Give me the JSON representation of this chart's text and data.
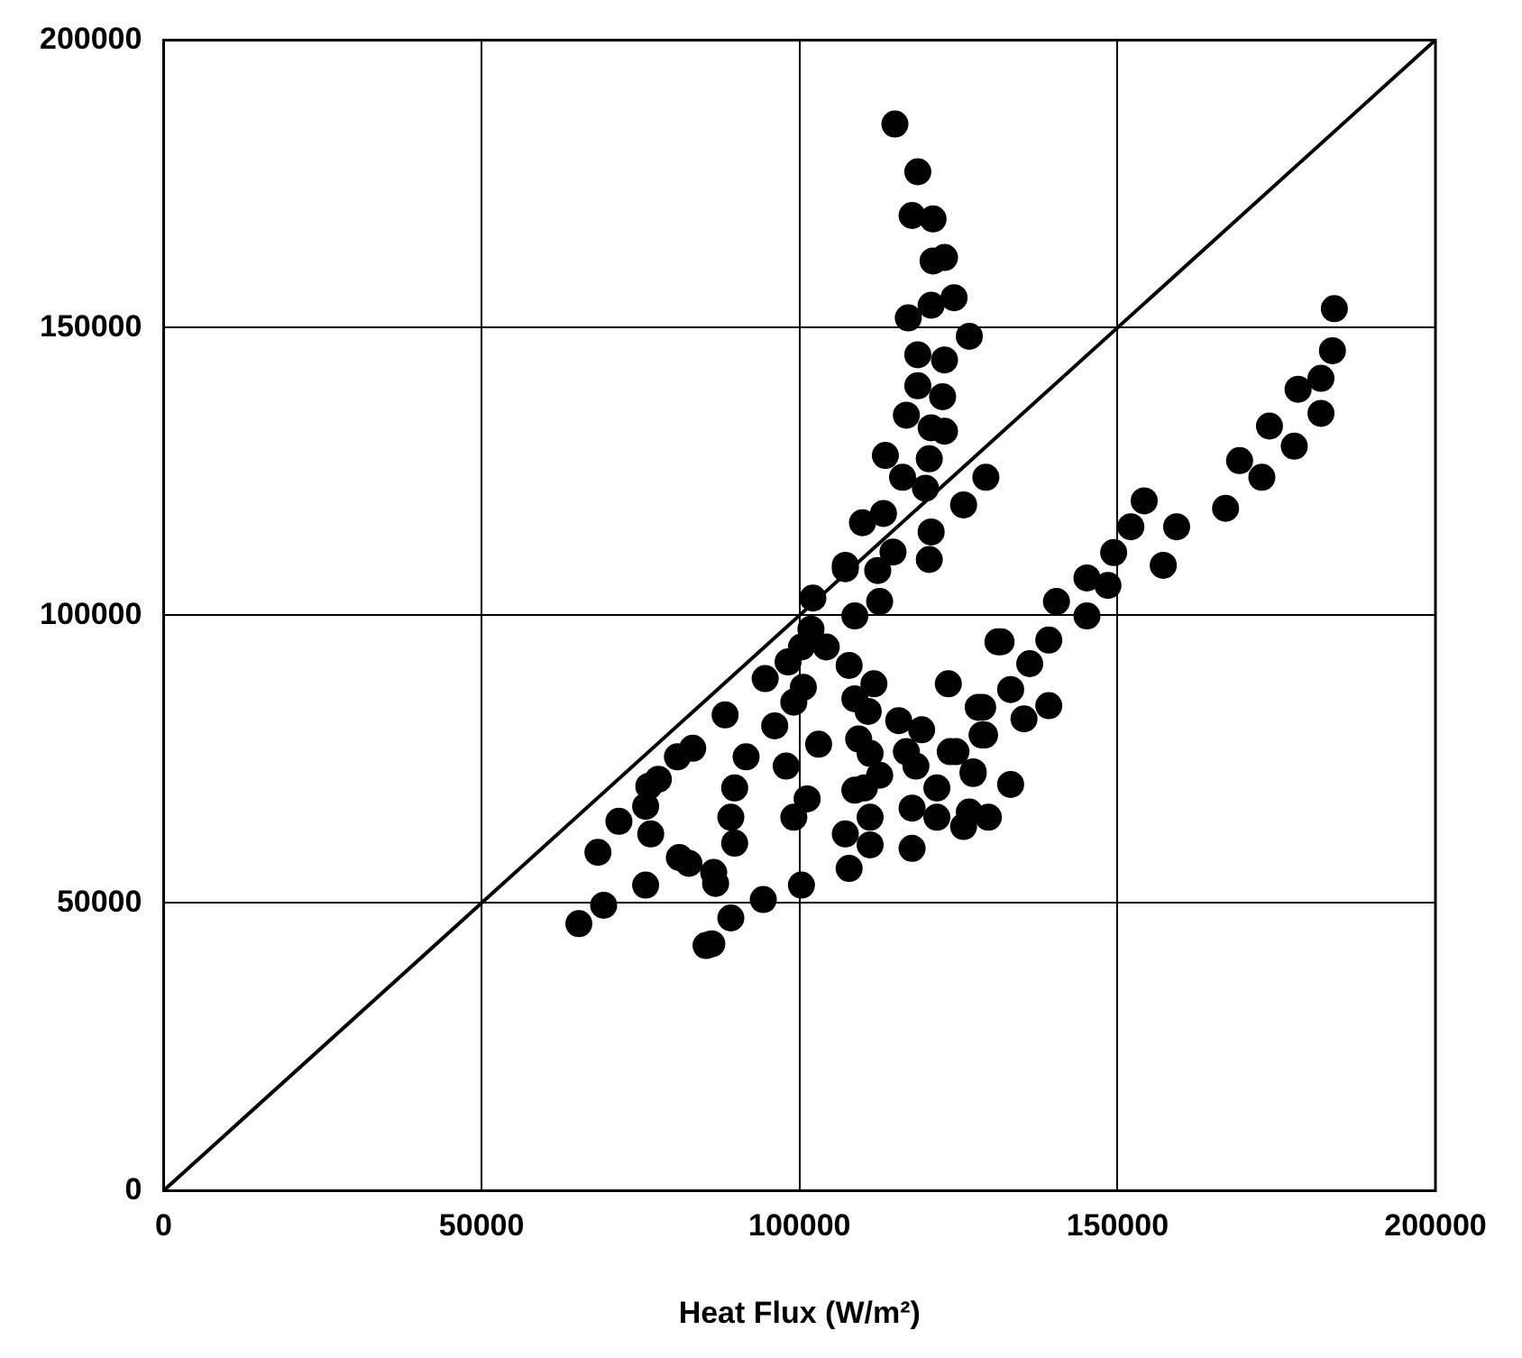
{
  "chart_data": {
    "type": "scatter",
    "xlabel": "Heat Flux (W/m²)",
    "xlim": [
      0,
      200000
    ],
    "ylim": [
      0,
      200000
    ],
    "xticks": [
      0,
      50000,
      100000,
      150000,
      200000
    ],
    "yticks": [
      0,
      50000,
      100000,
      150000,
      200000
    ],
    "grid": true,
    "legend": false,
    "series": [
      {
        "type": "scatter",
        "color": "#000000",
        "marker": "circle",
        "x": [
          65300,
          69200,
          68300,
          75800,
          71600,
          76600,
          75800,
          76300,
          77800,
          80800,
          83200,
          88300,
          81100,
          82600,
          86500,
          86800,
          89200,
          86200,
          85300,
          94300,
          100300,
          89800,
          89200,
          89800,
          91600,
          96100,
          97900,
          99100,
          101200,
          103000,
          94600,
          99100,
          100600,
          98200,
          100300,
          101800,
          102100,
          104200,
          107200,
          108700,
          107800,
          108700,
          111700,
          110800,
          109300,
          111100,
          112600,
          110200,
          108700,
          111100,
          107200,
          111100,
          107800,
          115600,
          119200,
          116800,
          118300,
          121600,
          117700,
          117700,
          121600,
          125800,
          126700,
          129700,
          123400,
          123700,
          127300,
          128800,
          129100,
          131200,
          184100,
          183800,
          182000,
          178400,
          182000,
          173900,
          177800,
          169200,
          172700,
          167000,
          154200,
          152100,
          159300,
          157200,
          149400,
          145200,
          148500,
          140400,
          145200,
          131700,
          139200,
          136200,
          133200,
          139200,
          135300,
          128100,
          128700,
          124600,
          127300,
          133200,
          129300,
          125800,
          115000,
          118600,
          117700,
          121000,
          121000,
          122800,
          124300,
          120700,
          117100,
          118600,
          122800,
          118600,
          122500,
          116800,
          120700,
          122800,
          113500,
          116200,
          120400,
          119800,
          109900,
          113200,
          120700,
          114700,
          120400,
          107200,
          112300,
          112600,
          126700
        ],
        "values": [
          46400,
          49600,
          58800,
          53100,
          64200,
          62000,
          66800,
          70300,
          71500,
          75400,
          76900,
          82700,
          57900,
          56900,
          55300,
          53400,
          47400,
          42900,
          42600,
          50600,
          53100,
          60400,
          64900,
          70000,
          75400,
          80800,
          73800,
          64900,
          68100,
          77600,
          89000,
          84900,
          87500,
          91900,
          94500,
          97600,
          103000,
          94500,
          108100,
          99900,
          91300,
          85500,
          88100,
          83300,
          78500,
          76000,
          72200,
          70000,
          69600,
          64900,
          62000,
          60100,
          56000,
          81700,
          80100,
          76300,
          73800,
          70000,
          66500,
          59500,
          64900,
          63300,
          65800,
          64900,
          88100,
          76300,
          72800,
          84000,
          79200,
          95400,
          153300,
          146000,
          141200,
          139300,
          135100,
          132900,
          129400,
          126900,
          124000,
          118600,
          119900,
          115400,
          115400,
          108700,
          110900,
          106500,
          105200,
          102400,
          99900,
          95400,
          95700,
          91600,
          87100,
          84300,
          82000,
          84000,
          79200,
          76300,
          72500,
          70600,
          124000,
          119200,
          185400,
          177100,
          169500,
          168900,
          161600,
          162200,
          155200,
          153900,
          151700,
          145300,
          144400,
          139900,
          138000,
          134800,
          132600,
          132000,
          127800,
          124000,
          127200,
          122100,
          116100,
          117700,
          114500,
          111000,
          109700,
          108700,
          107800,
          102400,
          148500
        ]
      },
      {
        "type": "line",
        "color": "#000000",
        "marker": "none",
        "x": [
          0,
          200000
        ],
        "values": [
          0,
          200000
        ]
      }
    ]
  }
}
